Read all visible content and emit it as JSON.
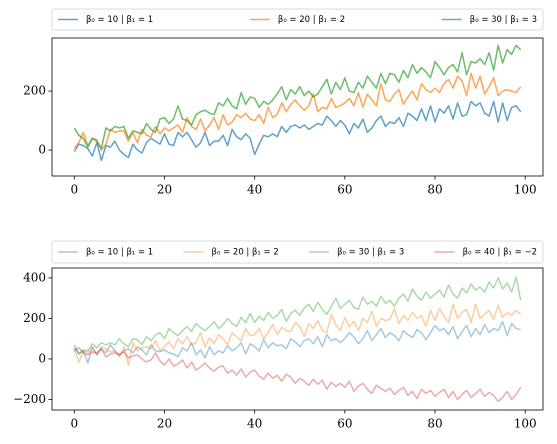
{
  "chart_data": [
    {
      "type": "line",
      "legend": "top",
      "alpha": 0.7,
      "x": [
        0,
        1,
        2,
        3,
        4,
        5,
        6,
        7,
        8,
        9,
        10,
        11,
        12,
        13,
        14,
        15,
        16,
        17,
        18,
        19,
        20,
        21,
        22,
        23,
        24,
        25,
        26,
        27,
        28,
        29,
        30,
        31,
        32,
        33,
        34,
        35,
        36,
        37,
        38,
        39,
        40,
        41,
        42,
        43,
        44,
        45,
        46,
        47,
        48,
        49,
        50,
        51,
        52,
        53,
        54,
        55,
        56,
        57,
        58,
        59,
        60,
        61,
        62,
        63,
        64,
        65,
        66,
        67,
        68,
        69,
        70,
        71,
        72,
        73,
        74,
        75,
        76,
        77,
        78,
        79,
        80,
        81,
        82,
        83,
        84,
        85,
        86,
        87,
        88,
        89,
        90,
        91,
        92,
        93,
        94,
        95,
        96,
        97,
        98,
        99
      ],
      "xlim": [
        -4.95,
        103.95
      ],
      "ylim": [
        -88,
        380
      ],
      "xticks": [
        0,
        20,
        40,
        60,
        80,
        100
      ],
      "yticks": [
        0,
        200
      ],
      "series": [
        {
          "name": "β₀ = 10 | β₁ = 1",
          "color": "#1f77b4",
          "values": [
            -5,
            20,
            15,
            5,
            -20,
            25,
            -35,
            15,
            10,
            30,
            0,
            -15,
            -25,
            20,
            0,
            -10,
            25,
            40,
            30,
            20,
            55,
            20,
            15,
            60,
            45,
            60,
            35,
            10,
            25,
            60,
            15,
            30,
            30,
            50,
            15,
            70,
            45,
            35,
            55,
            40,
            -15,
            20,
            50,
            45,
            55,
            45,
            80,
            60,
            80,
            85,
            75,
            85,
            70,
            80,
            90,
            85,
            115,
            100,
            80,
            100,
            85,
            55,
            90,
            75,
            105,
            60,
            75,
            100,
            115,
            80,
            95,
            90,
            110,
            80,
            125,
            115,
            100,
            140,
            100,
            150,
            95,
            140,
            125,
            150,
            105,
            160,
            115,
            120,
            165,
            150,
            160,
            125,
            115,
            165,
            95,
            160,
            100,
            145,
            150,
            130
          ]
        },
        {
          "name": "β₀ = 20 | β₁ = 2",
          "color": "#ff7f0e",
          "values": [
            5,
            25,
            60,
            15,
            40,
            35,
            0,
            20,
            70,
            60,
            65,
            65,
            30,
            60,
            25,
            70,
            50,
            45,
            80,
            55,
            75,
            65,
            75,
            85,
            60,
            110,
            80,
            70,
            105,
            65,
            85,
            110,
            70,
            120,
            85,
            95,
            120,
            110,
            125,
            105,
            100,
            120,
            90,
            145,
            110,
            120,
            160,
            130,
            155,
            170,
            150,
            135,
            150,
            190,
            130,
            145,
            140,
            175,
            145,
            150,
            160,
            175,
            150,
            195,
            145,
            190,
            170,
            150,
            225,
            170,
            165,
            190,
            205,
            155,
            180,
            200,
            170,
            225,
            205,
            195,
            210,
            195,
            225,
            240,
            210,
            250,
            235,
            185,
            260,
            210,
            250,
            190,
            215,
            245,
            185,
            200,
            205,
            200,
            195,
            215
          ]
        },
        {
          "name": "β₀ = 30 | β₁ = 3",
          "color": "#2ca02c",
          "values": [
            75,
            50,
            40,
            10,
            40,
            30,
            5,
            75,
            65,
            80,
            75,
            80,
            40,
            65,
            60,
            55,
            90,
            70,
            60,
            105,
            110,
            90,
            105,
            150,
            105,
            100,
            85,
            120,
            130,
            135,
            125,
            120,
            160,
            150,
            175,
            150,
            140,
            195,
            155,
            180,
            175,
            145,
            165,
            155,
            170,
            190,
            215,
            170,
            205,
            190,
            215,
            185,
            200,
            180,
            190,
            215,
            240,
            190,
            230,
            205,
            245,
            200,
            195,
            230,
            210,
            250,
            230,
            210,
            260,
            225,
            260,
            255,
            230,
            270,
            245,
            290,
            260,
            280,
            265,
            245,
            300,
            280,
            255,
            280,
            290,
            265,
            330,
            255,
            300,
            295,
            310,
            290,
            330,
            270,
            355,
            295,
            340,
            325,
            355,
            340
          ]
        }
      ]
    },
    {
      "type": "line",
      "legend": "top",
      "alpha": 0.4,
      "x": [
        0,
        1,
        2,
        3,
        4,
        5,
        6,
        7,
        8,
        9,
        10,
        11,
        12,
        13,
        14,
        15,
        16,
        17,
        18,
        19,
        20,
        21,
        22,
        23,
        24,
        25,
        26,
        27,
        28,
        29,
        30,
        31,
        32,
        33,
        34,
        35,
        36,
        37,
        38,
        39,
        40,
        41,
        42,
        43,
        44,
        45,
        46,
        47,
        48,
        49,
        50,
        51,
        52,
        53,
        54,
        55,
        56,
        57,
        58,
        59,
        60,
        61,
        62,
        63,
        64,
        65,
        66,
        67,
        68,
        69,
        70,
        71,
        72,
        73,
        74,
        75,
        76,
        77,
        78,
        79,
        80,
        81,
        82,
        83,
        84,
        85,
        86,
        87,
        88,
        89,
        90,
        91,
        92,
        93,
        94,
        95,
        96,
        97,
        98,
        99
      ],
      "xlim": [
        -4.95,
        103.95
      ],
      "ylim": [
        -252,
        449
      ],
      "xticks": [
        0,
        20,
        40,
        60,
        80,
        100
      ],
      "yticks": [
        {
          "value": -200,
          "label": "−200"
        },
        0,
        200,
        400
      ],
      "series": [
        {
          "name": "β₀ = 10 | β₁ = 1",
          "color": "#1f77b4",
          "values": [
            70,
            25,
            40,
            -20,
            60,
            20,
            50,
            30,
            70,
            40,
            20,
            40,
            50,
            30,
            60,
            45,
            20,
            70,
            40,
            35,
            45,
            30,
            25,
            10,
            55,
            40,
            80,
            20,
            45,
            5,
            60,
            20,
            40,
            30,
            65,
            40,
            55,
            80,
            25,
            75,
            60,
            40,
            95,
            55,
            80,
            65,
            70,
            50,
            100,
            85,
            60,
            90,
            100,
            75,
            110,
            60,
            120,
            90,
            100,
            80,
            100,
            130,
            110,
            75,
            100,
            140,
            90,
            120,
            150,
            105,
            130,
            115,
            90,
            140,
            120,
            105,
            145,
            130,
            95,
            130,
            165,
            140,
            150,
            120,
            160,
            100,
            135,
            165,
            110,
            150,
            120,
            170,
            130,
            150,
            140,
            185,
            115,
            175,
            150,
            145
          ]
        },
        {
          "name": "β₀ = 20 | β₁ = 2",
          "color": "#ff7f0e",
          "values": [
            50,
            -15,
            40,
            30,
            55,
            20,
            60,
            50,
            35,
            40,
            10,
            60,
            -30,
            80,
            40,
            55,
            60,
            50,
            90,
            40,
            60,
            85,
            50,
            100,
            75,
            110,
            70,
            80,
            130,
            60,
            105,
            75,
            120,
            100,
            70,
            130,
            110,
            90,
            150,
            115,
            120,
            150,
            100,
            130,
            170,
            120,
            155,
            140,
            135,
            180,
            160,
            110,
            175,
            150,
            190,
            140,
            130,
            220,
            170,
            140,
            205,
            160,
            185,
            140,
            200,
            180,
            235,
            160,
            200,
            190,
            195,
            250,
            175,
            215,
            190,
            230,
            200,
            215,
            160,
            240,
            190,
            250,
            210,
            180,
            270,
            200,
            230,
            245,
            180,
            270,
            200,
            220,
            240,
            195,
            265,
            205,
            230,
            215,
            240,
            220
          ]
        },
        {
          "name": "β₀ = 30 | β₁ = 3",
          "color": "#2ca02c",
          "values": [
            55,
            25,
            45,
            40,
            75,
            55,
            80,
            70,
            80,
            70,
            100,
            75,
            60,
            100,
            95,
            70,
            110,
            90,
            120,
            130,
            100,
            150,
            130,
            115,
            140,
            160,
            135,
            175,
            155,
            140,
            160,
            185,
            150,
            170,
            200,
            175,
            160,
            205,
            180,
            225,
            180,
            210,
            190,
            230,
            200,
            215,
            245,
            185,
            225,
            240,
            215,
            250,
            270,
            235,
            280,
            245,
            220,
            260,
            300,
            250,
            270,
            290,
            255,
            245,
            305,
            270,
            285,
            260,
            310,
            275,
            290,
            260,
            300,
            320,
            285,
            345,
            310,
            290,
            330,
            300,
            320,
            340,
            305,
            365,
            320,
            300,
            350,
            325,
            370,
            340,
            355,
            330,
            380,
            350,
            400,
            345,
            375,
            330,
            405,
            290
          ]
        },
        {
          "name": "β₀ = 40 | β₁ = −2",
          "color": "#d62728",
          "values": [
            40,
            55,
            30,
            20,
            35,
            30,
            50,
            10,
            25,
            30,
            20,
            35,
            5,
            15,
            20,
            0,
            -15,
            -5,
            30,
            -10,
            -30,
            0,
            -35,
            -25,
            -5,
            -45,
            -15,
            -55,
            -40,
            -20,
            -45,
            -60,
            -40,
            -35,
            -70,
            -55,
            -80,
            -50,
            -90,
            -65,
            -55,
            -85,
            -100,
            -70,
            -95,
            -80,
            -110,
            -75,
            -90,
            -120,
            -95,
            -110,
            -130,
            -100,
            -125,
            -105,
            -150,
            -115,
            -135,
            -120,
            -140,
            -110,
            -160,
            -135,
            -120,
            -150,
            -170,
            -130,
            -145,
            -160,
            -145,
            -175,
            -155,
            -140,
            -180,
            -160,
            -195,
            -150,
            -170,
            -155,
            -185,
            -165,
            -150,
            -190,
            -160,
            -200,
            -175,
            -155,
            -190,
            -170,
            -150,
            -185,
            -165,
            -180,
            -210,
            -190,
            -160,
            -200,
            -175,
            -140
          ]
        }
      ]
    }
  ]
}
